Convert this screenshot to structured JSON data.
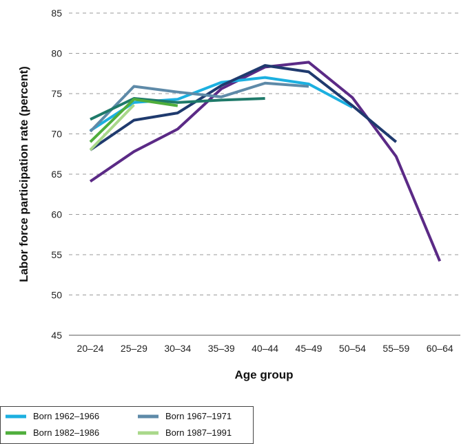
{
  "chart_data": {
    "type": "line",
    "title": "",
    "xlabel": "Age group",
    "ylabel": "Labor force participation rate (percent)",
    "categories": [
      "20–24",
      "25–29",
      "30–34",
      "35–39",
      "40–44",
      "45–49",
      "50–54",
      "55–59",
      "60–64"
    ],
    "yticks": [
      45,
      50,
      55,
      60,
      65,
      70,
      75,
      80,
      85
    ],
    "ylim": [
      45,
      85
    ],
    "grid": "horizontal dashed",
    "legend_position": "bottom-left",
    "series": [
      {
        "name": "",
        "color": "#5b2a86",
        "values": [
          64.1,
          67.8,
          70.6,
          75.6,
          78.3,
          78.9,
          74.5,
          67.2,
          54.2
        ]
      },
      {
        "name": "Born 1962–1966",
        "color": "#1cb0e0",
        "values": [
          70.4,
          73.9,
          74.3,
          76.4,
          77.0,
          76.2,
          73.3,
          null,
          null
        ]
      },
      {
        "name": "",
        "color": "#1f3a6e",
        "values": [
          68.0,
          71.7,
          72.6,
          76.0,
          78.5,
          77.7,
          73.5,
          69.0,
          null
        ]
      },
      {
        "name": "Born 1967–1971",
        "color": "#5e8aa8",
        "values": [
          70.3,
          75.9,
          75.2,
          74.6,
          76.3,
          75.9,
          null,
          null,
          null
        ]
      },
      {
        "name": "",
        "color": "#1f7a6a",
        "values": [
          71.8,
          74.4,
          73.9,
          74.2,
          74.4,
          null,
          null,
          null,
          null
        ]
      },
      {
        "name": "Born 1982–1986",
        "color": "#4fae3c",
        "values": [
          69.0,
          74.3,
          73.5,
          null,
          null,
          null,
          null,
          null,
          null
        ]
      },
      {
        "name": "Born 1987–1991",
        "color": "#a9d88a",
        "values": [
          68.0,
          73.6,
          null,
          null,
          null,
          null,
          null,
          null,
          null
        ]
      }
    ],
    "legend": [
      {
        "label": "Born 1962–1966",
        "color": "#1cb0e0"
      },
      {
        "label": "Born 1967–1971",
        "color": "#5e8aa8"
      },
      {
        "label": "Born 1982–1986",
        "color": "#4fae3c"
      },
      {
        "label": "Born 1987–1991",
        "color": "#a9d88a"
      }
    ]
  }
}
